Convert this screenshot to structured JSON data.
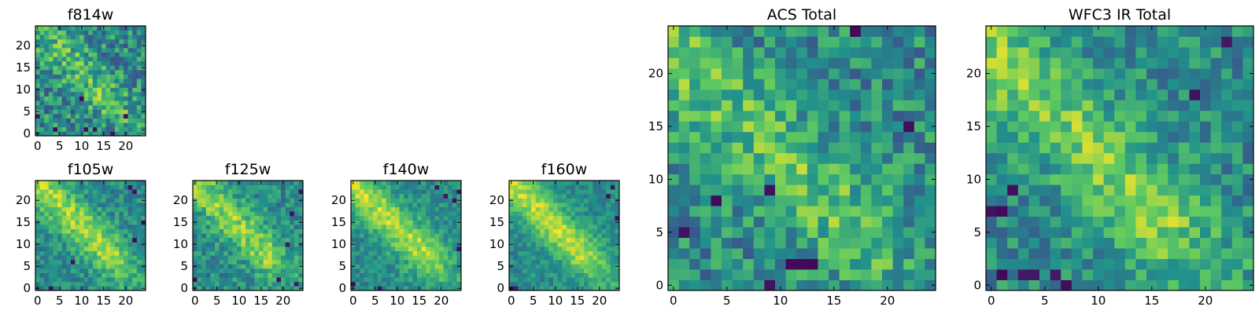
{
  "figure": {
    "colormap": "viridis",
    "colormap_stops": [
      "#440154",
      "#3b528b",
      "#21918c",
      "#5ec962",
      "#fde725"
    ],
    "frame_color": "#000000"
  },
  "chart_data": [
    {
      "id": "f814w",
      "type": "heatmap",
      "title": "f814w",
      "grid_size": 25,
      "xlim": [
        -0.5,
        24.5
      ],
      "ylim": [
        -0.5,
        24.5
      ],
      "xticks": [
        0,
        5,
        10,
        15,
        20
      ],
      "yticks": [
        0,
        5,
        10,
        15,
        20
      ],
      "origin": "lower",
      "seed": 11,
      "peak_strength": 0.22,
      "noise": 0.3,
      "peak_center": [
        0,
        24
      ],
      "dark_pixels": [
        [
          4,
          1
        ],
        [
          10,
          8
        ],
        [
          11,
          1
        ],
        [
          13,
          1
        ],
        [
          20,
          4
        ],
        [
          0,
          4
        ],
        [
          17,
          0
        ]
      ]
    },
    {
      "id": "f105w",
      "type": "heatmap",
      "title": "f105w",
      "grid_size": 25,
      "xlim": [
        -0.5,
        24.5
      ],
      "ylim": [
        -0.5,
        24.5
      ],
      "xticks": [
        0,
        5,
        10,
        15,
        20
      ],
      "yticks": [
        0,
        5,
        10,
        15,
        20
      ],
      "origin": "lower",
      "seed": 23,
      "peak_strength": 0.38,
      "noise": 0.18,
      "peak_center": [
        0,
        24
      ],
      "dark_pixels": [
        [
          21,
          23
        ],
        [
          22,
          22
        ],
        [
          24,
          15
        ],
        [
          22,
          11
        ],
        [
          8,
          6
        ],
        [
          3,
          0
        ]
      ]
    },
    {
      "id": "f125w",
      "type": "heatmap",
      "title": "f125w",
      "grid_size": 25,
      "xlim": [
        -0.5,
        24.5
      ],
      "ylim": [
        -0.5,
        24.5
      ],
      "xticks": [
        0,
        5,
        10,
        15,
        20
      ],
      "yticks": [
        0,
        5,
        10,
        15,
        20
      ],
      "origin": "lower",
      "seed": 37,
      "peak_strength": 0.34,
      "noise": 0.2,
      "peak_center": [
        0,
        24
      ],
      "dark_pixels": [
        [
          22,
          17
        ],
        [
          21,
          10
        ],
        [
          19,
          2
        ],
        [
          23,
          1
        ],
        [
          0,
          2
        ],
        [
          24,
          22
        ]
      ]
    },
    {
      "id": "f140w",
      "type": "heatmap",
      "title": "f140w",
      "grid_size": 25,
      "xlim": [
        -0.5,
        24.5
      ],
      "ylim": [
        -0.5,
        24.5
      ],
      "xticks": [
        0,
        5,
        10,
        15,
        20
      ],
      "yticks": [
        0,
        5,
        10,
        15,
        20
      ],
      "origin": "lower",
      "seed": 41,
      "peak_strength": 0.4,
      "noise": 0.16,
      "peak_center": [
        0,
        24
      ],
      "dark_pixels": [
        [
          19,
          23
        ],
        [
          24,
          22
        ],
        [
          21,
          21
        ],
        [
          23,
          20
        ],
        [
          24,
          9
        ],
        [
          0,
          1
        ],
        [
          6,
          0
        ]
      ]
    },
    {
      "id": "f160w",
      "type": "heatmap",
      "title": "f160w",
      "grid_size": 25,
      "xlim": [
        -0.5,
        24.5
      ],
      "ylim": [
        -0.5,
        24.5
      ],
      "xticks": [
        0,
        5,
        10,
        15,
        20
      ],
      "yticks": [
        0,
        5,
        10,
        15,
        20
      ],
      "origin": "lower",
      "seed": 53,
      "peak_strength": 0.42,
      "noise": 0.14,
      "peak_center": [
        0,
        24
      ],
      "dark_pixels": [
        [
          23,
          23
        ],
        [
          24,
          16
        ],
        [
          0,
          0
        ],
        [
          1,
          0
        ],
        [
          22,
          21
        ]
      ]
    },
    {
      "id": "acs_total",
      "type": "heatmap",
      "title": "ACS Total",
      "grid_size": 25,
      "xlim": [
        -0.5,
        24.5
      ],
      "ylim": [
        -0.5,
        24.5
      ],
      "xticks": [
        0,
        5,
        10,
        15,
        20
      ],
      "yticks": [
        0,
        5,
        10,
        15,
        20
      ],
      "origin": "lower",
      "seed": 67,
      "peak_strength": 0.24,
      "noise": 0.26,
      "peak_center": [
        0,
        22
      ],
      "dark_pixels": [
        [
          17,
          24
        ],
        [
          22,
          15
        ],
        [
          4,
          8
        ],
        [
          9,
          9
        ],
        [
          1,
          5
        ],
        [
          9,
          0
        ],
        [
          11,
          2
        ],
        [
          12,
          2
        ],
        [
          13,
          2
        ]
      ]
    },
    {
      "id": "wfc3_ir_total",
      "type": "heatmap",
      "title": "WFC3 IR Total",
      "grid_size": 25,
      "xlim": [
        -0.5,
        24.5
      ],
      "ylim": [
        -0.5,
        24.5
      ],
      "xticks": [
        0,
        5,
        10,
        15,
        20
      ],
      "yticks": [
        0,
        5,
        10,
        15,
        20
      ],
      "origin": "lower",
      "seed": 79,
      "peak_strength": 0.3,
      "noise": 0.22,
      "peak_center": [
        0,
        22
      ],
      "dark_pixels": [
        [
          22,
          23
        ],
        [
          19,
          18
        ],
        [
          2,
          9
        ],
        [
          1,
          7
        ],
        [
          0,
          7
        ],
        [
          3,
          1
        ],
        [
          4,
          1
        ],
        [
          6,
          1
        ],
        [
          7,
          0
        ],
        [
          1,
          1
        ]
      ]
    }
  ]
}
